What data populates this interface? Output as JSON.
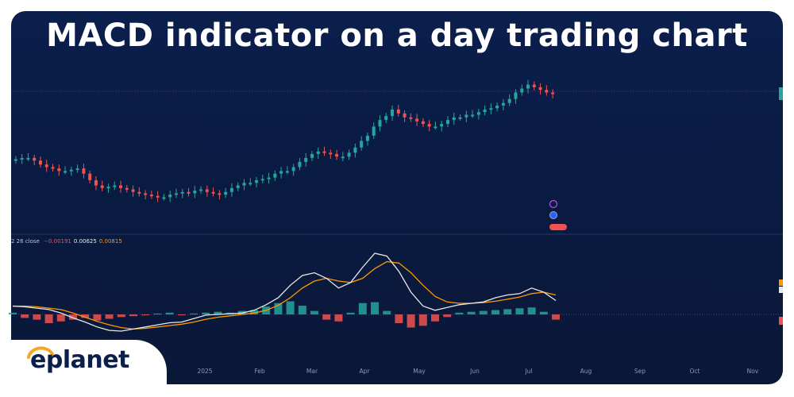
{
  "title": "MACD indicator on a day trading chart",
  "brand": {
    "logo_text": "eplanet"
  },
  "colors": {
    "background": "#0a1a3f",
    "up": "#26a69a",
    "down": "#ef5350",
    "macd_line": "#e8e8e8",
    "signal_line": "#ff9800",
    "hist_up": "#26a69a",
    "hist_down": "#ef5350",
    "brand": "#f5a623"
  },
  "chart_data": {
    "type": "line",
    "x_axis": {
      "tick_labels": [
        "2025",
        "Feb",
        "Mar",
        "Apr",
        "May",
        "Jun",
        "Jul",
        "Aug",
        "Sep",
        "Oct",
        "Nov"
      ]
    },
    "indicator": {
      "label": "2 26 close",
      "values": [
        "−0.00191",
        "0.00625",
        "0.00815"
      ]
    },
    "price_series": {
      "name": "",
      "values": [
        42,
        43,
        43,
        41,
        38,
        36,
        35,
        33,
        33,
        34,
        35,
        31,
        26,
        22,
        20,
        21,
        22,
        20,
        19,
        17,
        16,
        15,
        14,
        13,
        13,
        15,
        16,
        17,
        16,
        18,
        19,
        17,
        16,
        15,
        17,
        20,
        22,
        24,
        24,
        26,
        27,
        28,
        31,
        33,
        33,
        36,
        40,
        43,
        46,
        48,
        47,
        46,
        44,
        44,
        47,
        51,
        56,
        60,
        67,
        72,
        75,
        80,
        77,
        74,
        73,
        71,
        69,
        67,
        67,
        69,
        72,
        74,
        74,
        76,
        76,
        78,
        80,
        81,
        83,
        85,
        88,
        93,
        96,
        99,
        97,
        95,
        93,
        92
      ]
    },
    "macd_series": {
      "name": "",
      "values": [
        0.6,
        0.55,
        0.45,
        0.35,
        0.1,
        -0.25,
        -0.55,
        -0.9,
        -1.15,
        -1.2,
        -1.05,
        -0.9,
        -0.75,
        -0.6,
        -0.55,
        -0.3,
        -0.05,
        0.0,
        0.05,
        0.1,
        0.3,
        0.7,
        1.2,
        2.1,
        2.8,
        3.0,
        2.6,
        1.9,
        2.3,
        3.4,
        4.4,
        4.2,
        3.1,
        1.6,
        0.6,
        0.3,
        0.5,
        0.7,
        0.8,
        0.9,
        1.2,
        1.4,
        1.5,
        1.9,
        1.6,
        1.0
      ]
    },
    "signal_series": {
      "name": "",
      "values": [
        0.6,
        0.6,
        0.55,
        0.45,
        0.35,
        0.1,
        -0.2,
        -0.5,
        -0.75,
        -0.95,
        -1.05,
        -1.0,
        -0.9,
        -0.8,
        -0.7,
        -0.55,
        -0.35,
        -0.2,
        -0.1,
        0.0,
        0.1,
        0.3,
        0.65,
        1.2,
        1.9,
        2.4,
        2.6,
        2.4,
        2.3,
        2.6,
        3.3,
        3.8,
        3.7,
        3.0,
        2.1,
        1.3,
        0.9,
        0.8,
        0.8,
        0.85,
        0.95,
        1.1,
        1.25,
        1.5,
        1.6,
        1.4
      ]
    },
    "histogram": {
      "name": "",
      "values": [
        0.1,
        -0.2,
        -0.3,
        -0.5,
        -0.4,
        -0.3,
        -0.2,
        -0.35,
        -0.25,
        -0.15,
        -0.1,
        -0.05,
        0.05,
        0.1,
        -0.05,
        0.05,
        0.1,
        0.15,
        0.1,
        0.2,
        0.25,
        0.45,
        0.65,
        0.75,
        0.5,
        0.2,
        -0.3,
        -0.4,
        0.1,
        0.65,
        0.7,
        0.2,
        -0.5,
        -0.75,
        -0.65,
        -0.4,
        -0.15,
        0.1,
        0.15,
        0.2,
        0.25,
        0.3,
        0.35,
        0.4,
        0.15,
        -0.3
      ]
    }
  }
}
